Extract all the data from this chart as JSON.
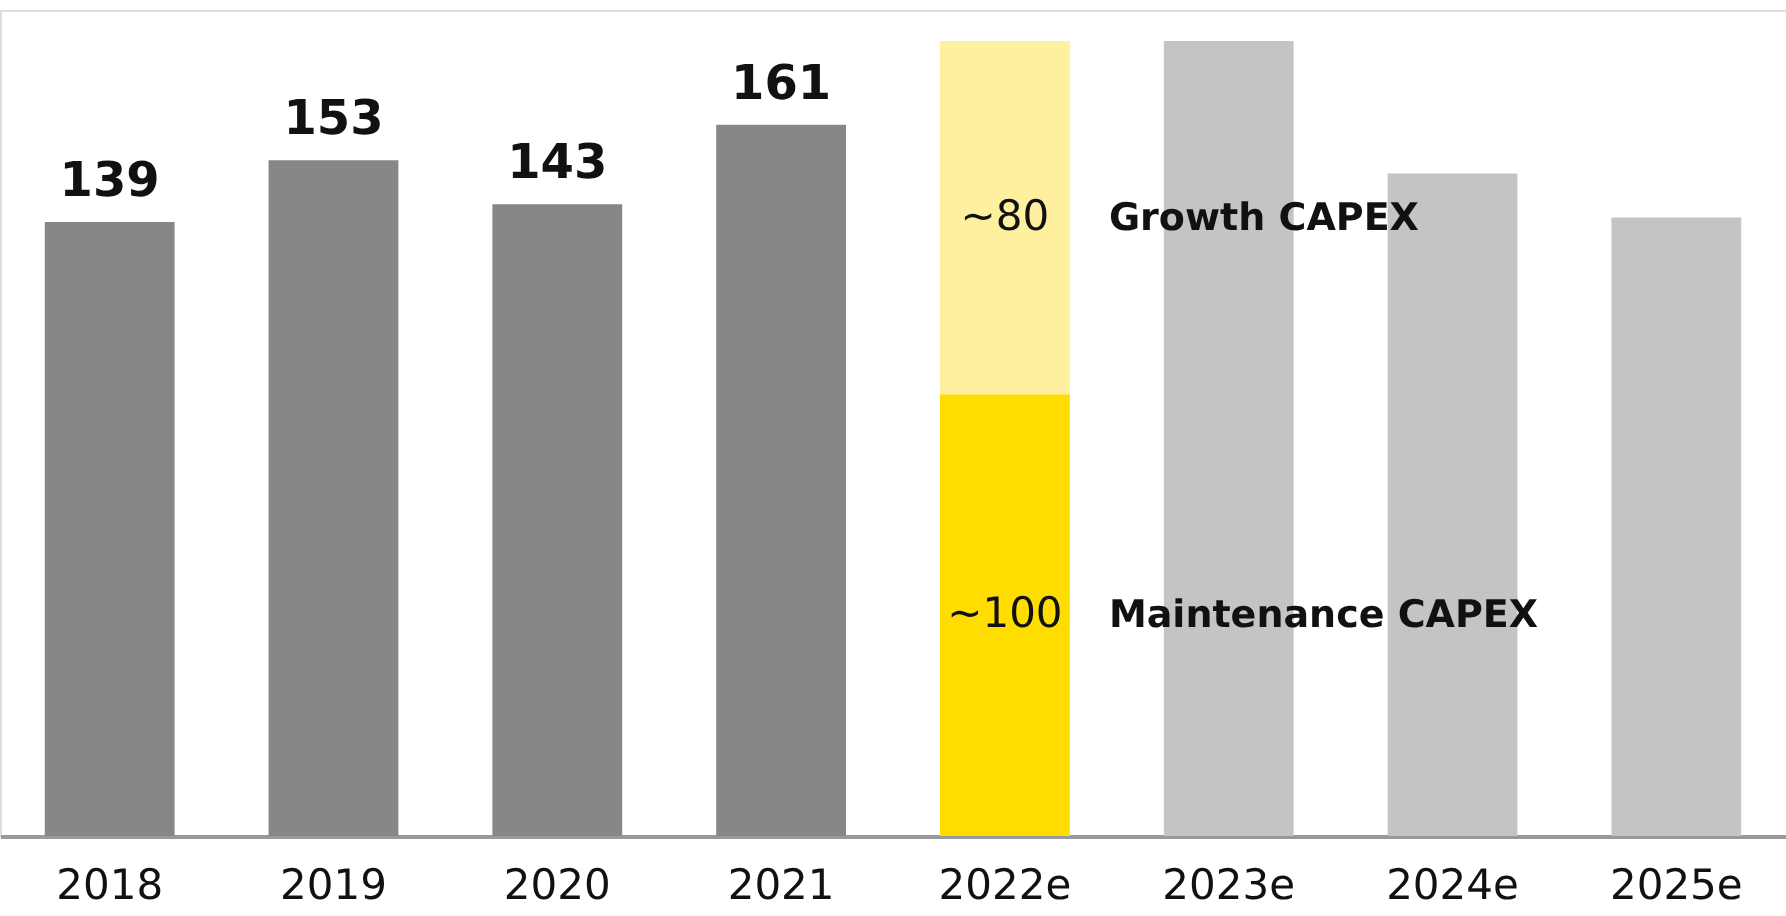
{
  "chart_data": {
    "type": "bar",
    "stacked": true,
    "categories": [
      "2018",
      "2019",
      "2020",
      "2021",
      "2022e",
      "2023e",
      "2024e",
      "2025e"
    ],
    "series": [
      {
        "values": [
          139,
          153,
          143,
          161,
          100,
          180,
          150,
          140
        ],
        "colors": [
          "#878787",
          "#878787",
          "#878787",
          "#878787",
          "#ffdd00",
          "#c4c4c4",
          "#c4c4c4",
          "#c4c4c4"
        ],
        "value_labels": [
          "139",
          "153",
          "143",
          "161",
          "~100",
          null,
          null,
          null
        ]
      },
      {
        "values": [
          null,
          null,
          null,
          null,
          80,
          null,
          null,
          null
        ],
        "color": "#fff0a0",
        "value_labels": [
          null,
          null,
          null,
          null,
          "~80",
          null,
          null,
          null
        ]
      }
    ],
    "annotations": [
      "Growth CAPEX",
      "Maintenance CAPEX"
    ],
    "ylim": [
      0,
      187
    ],
    "tick_labels": "x"
  }
}
